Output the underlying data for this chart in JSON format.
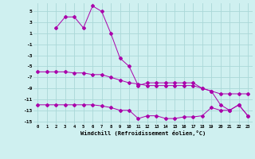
{
  "xlabel": "Windchill (Refroidissement éolien,°C)",
  "background_color": "#cff0f0",
  "grid_color": "#aad8d8",
  "line_color": "#aa00aa",
  "xlim": [
    -0.5,
    23.5
  ],
  "ylim": [
    -15.5,
    6.5
  ],
  "yticks": [
    5,
    3,
    1,
    -1,
    -3,
    -5,
    -7,
    -9,
    -11,
    -13,
    -15
  ],
  "xticks": [
    0,
    1,
    2,
    3,
    4,
    5,
    6,
    7,
    8,
    9,
    10,
    11,
    12,
    13,
    14,
    15,
    16,
    17,
    18,
    19,
    20,
    21,
    22,
    23
  ],
  "series1_x": [
    2,
    3,
    4,
    5,
    6,
    7,
    8,
    9,
    10,
    11,
    12,
    13,
    14,
    15,
    16,
    17,
    18,
    19,
    20,
    21,
    22,
    23
  ],
  "series1_y": [
    2,
    4,
    4,
    2,
    6,
    5,
    1,
    -3.5,
    -5,
    -8.5,
    -8,
    -8,
    -8,
    -8,
    -8,
    -8,
    -9,
    -9.5,
    -12,
    -13,
    -12,
    -14
  ],
  "series2_x": [
    0,
    1,
    2,
    3,
    4,
    5,
    6,
    7,
    8,
    9,
    10,
    11,
    12,
    13,
    14,
    15,
    16,
    17,
    18,
    19,
    20,
    21,
    22,
    23
  ],
  "series2_y": [
    -6,
    -6,
    -6,
    -6,
    -6.2,
    -6.2,
    -6.5,
    -6.5,
    -7,
    -7.5,
    -8,
    -8.2,
    -8.5,
    -8.5,
    -8.5,
    -8.5,
    -8.5,
    -8.5,
    -9,
    -9.5,
    -10,
    -10,
    -10,
    -10
  ],
  "series3_x": [
    0,
    1,
    2,
    3,
    4,
    5,
    6,
    7,
    8,
    9,
    10,
    11,
    12,
    13,
    14,
    15,
    16,
    17,
    18,
    19,
    20,
    21,
    22,
    23
  ],
  "series3_y": [
    -12,
    -12,
    -12,
    -12,
    -12,
    -12,
    -12,
    -12.2,
    -12.5,
    -13,
    -13,
    -14.5,
    -14,
    -14,
    -14.5,
    -14.5,
    -14.2,
    -14.2,
    -14,
    -12.5,
    -13,
    -13,
    -12,
    -14
  ]
}
